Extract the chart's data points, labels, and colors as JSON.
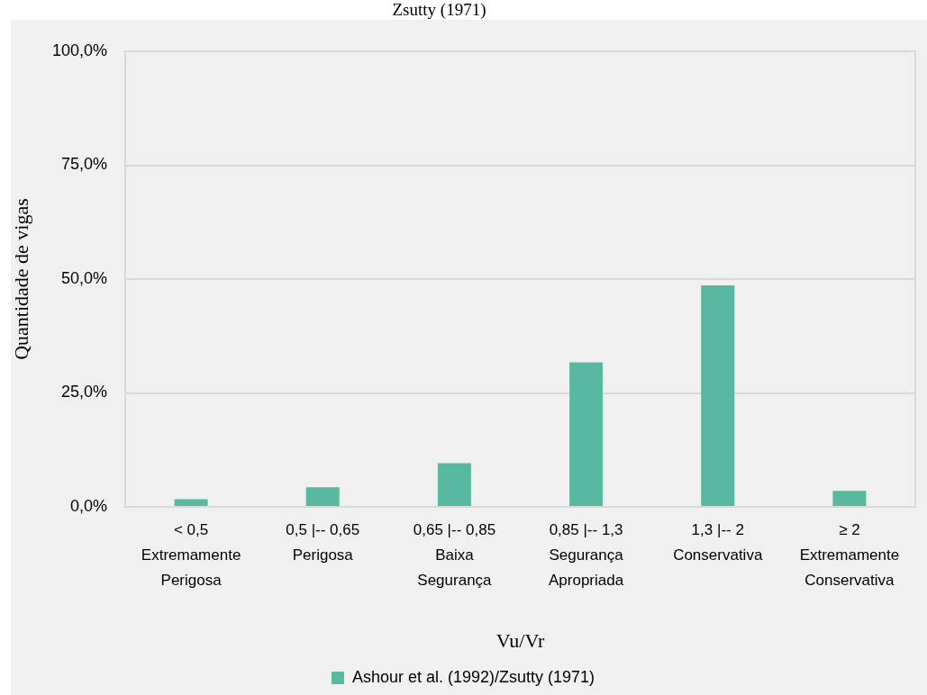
{
  "chart_data": {
    "type": "bar",
    "title": "Zsutty (1971)",
    "xlabel": "Vu/Vr",
    "ylabel": "Quantidade de vigas",
    "categories": [
      "< 0,5\nExtremamente\nPerigosa",
      "0,5 |-- 0,65\nPerigosa",
      "0,65 |-- 0,85\nBaixa\nSegurança",
      "0,85 |-- 1,3\nSegurança\nApropriada",
      "1,3 |-- 2\nConservativa",
      "≥ 2\nExtremamente\nConservativa"
    ],
    "series": [
      {
        "name": "Ashour et al. (1992)/Zsutty (1971)",
        "color": "#58b8a0",
        "values": [
          1.7,
          4.3,
          9.6,
          31.7,
          48.6,
          3.5
        ]
      }
    ],
    "ylim": [
      0,
      100
    ],
    "yticks": [
      {
        "value": 0,
        "label": "0,0%"
      },
      {
        "value": 25,
        "label": "25,0%"
      },
      {
        "value": 50,
        "label": "50,0%"
      },
      {
        "value": 75,
        "label": "75,0%"
      },
      {
        "value": 100,
        "label": "100,0%"
      }
    ],
    "grid": "y",
    "legend": "bottom"
  }
}
